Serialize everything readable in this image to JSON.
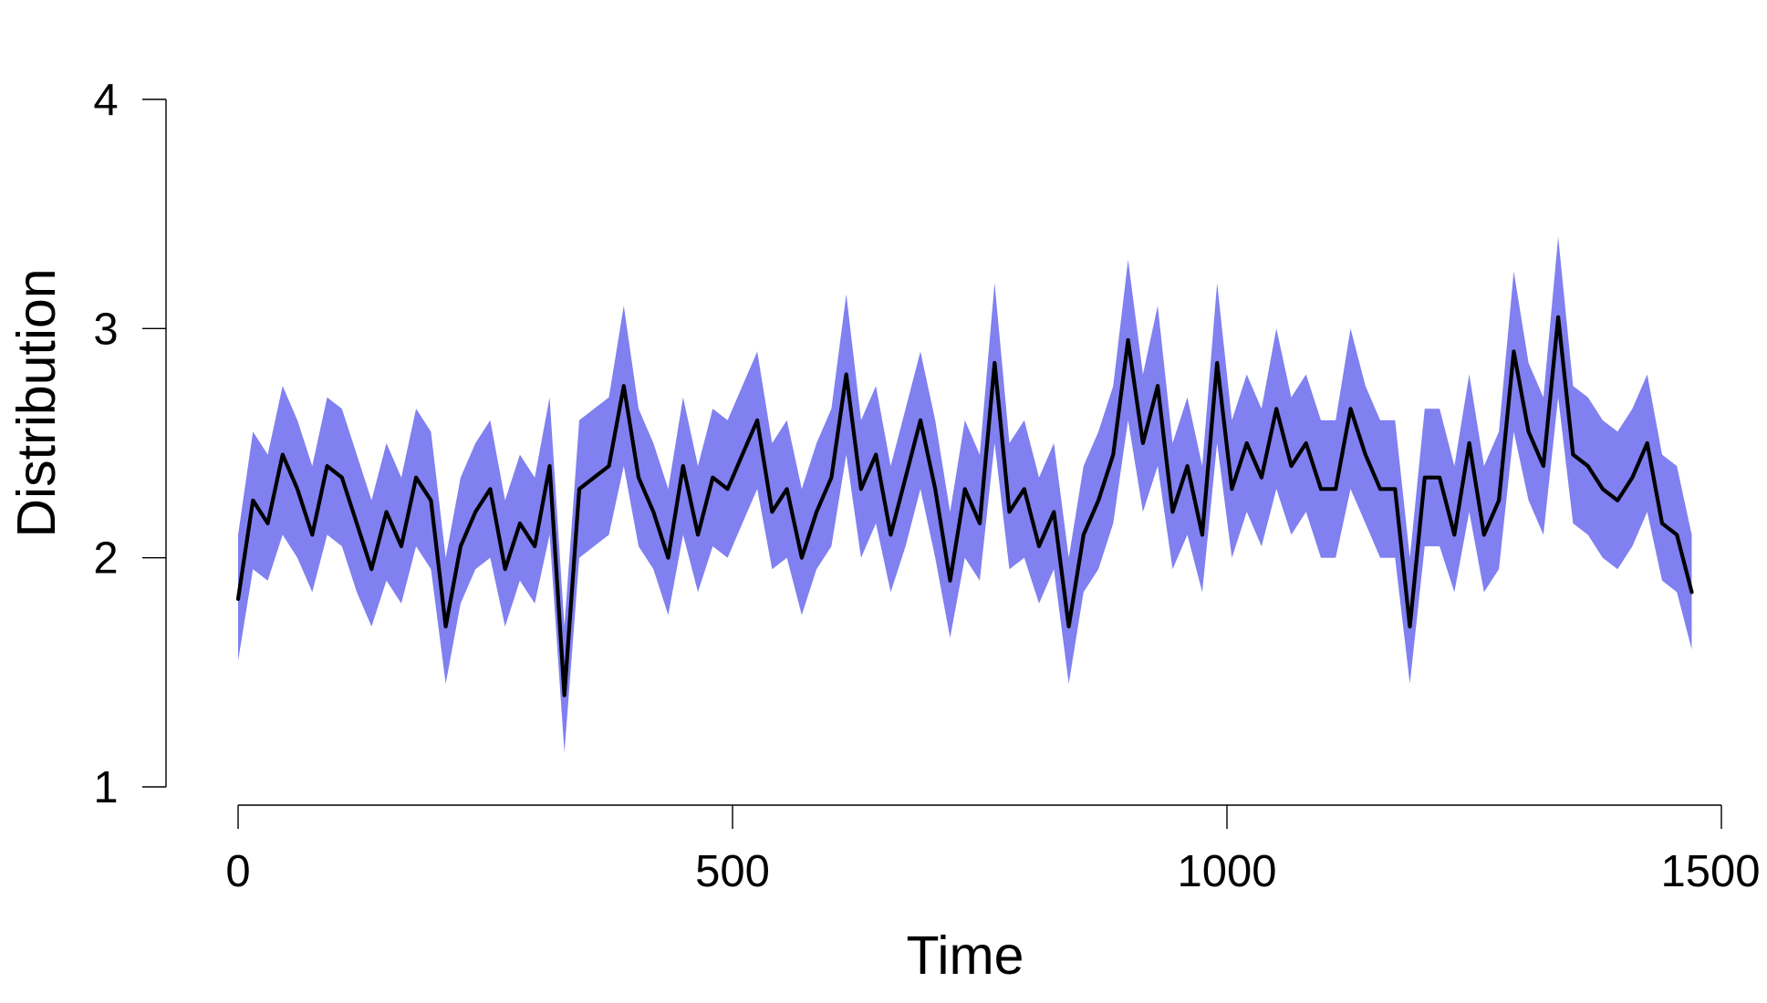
{
  "chart_data": {
    "type": "line",
    "xlabel": "Time",
    "ylabel": "Distribution",
    "xlim": [
      0,
      1500
    ],
    "ylim": [
      1,
      4
    ],
    "x_ticks": [
      "0",
      "500",
      "1000",
      "1500"
    ],
    "y_ticks": [
      "1",
      "2",
      "3",
      "4"
    ],
    "grid": false,
    "legend": "none",
    "colors": {
      "line": "#000000",
      "band": "#8080f0"
    },
    "series": [
      {
        "x": [
          0,
          15,
          30,
          45,
          60,
          75,
          90,
          105,
          120,
          135,
          150,
          165,
          180,
          195,
          210,
          225,
          240,
          255,
          270,
          285,
          300,
          315,
          330,
          345,
          360,
          375,
          390,
          405,
          420,
          435,
          450,
          465,
          480,
          495,
          510,
          525,
          540,
          555,
          570,
          585,
          600,
          615,
          630,
          645,
          660,
          675,
          690,
          705,
          720,
          735,
          750,
          765,
          780,
          795,
          810,
          825,
          840,
          855,
          870,
          885,
          900,
          915,
          930,
          945,
          960,
          975,
          990,
          1005,
          1020,
          1035,
          1050,
          1065,
          1080,
          1095,
          1110,
          1125,
          1140,
          1155,
          1170,
          1185,
          1200,
          1215,
          1230,
          1245,
          1260,
          1275,
          1290,
          1305,
          1320,
          1335,
          1350,
          1365,
          1380,
          1395,
          1410,
          1425,
          1440,
          1455,
          1470
        ],
        "values": [
          1.82,
          2.25,
          2.15,
          2.45,
          2.3,
          2.1,
          2.4,
          2.35,
          2.15,
          1.95,
          2.2,
          2.05,
          2.35,
          2.25,
          1.7,
          2.05,
          2.2,
          2.3,
          1.95,
          2.15,
          2.05,
          2.4,
          1.4,
          2.3,
          2.35,
          2.4,
          2.75,
          2.35,
          2.2,
          2.0,
          2.4,
          2.1,
          2.35,
          2.3,
          2.45,
          2.6,
          2.2,
          2.3,
          2.0,
          2.2,
          2.35,
          2.8,
          2.3,
          2.45,
          2.1,
          2.35,
          2.6,
          2.3,
          1.9,
          2.3,
          2.15,
          2.85,
          2.2,
          2.3,
          2.05,
          2.2,
          1.7,
          2.1,
          2.25,
          2.45,
          2.95,
          2.5,
          2.75,
          2.2,
          2.4,
          2.1,
          2.85,
          2.3,
          2.5,
          2.35,
          2.65,
          2.4,
          2.5,
          2.3,
          2.3,
          2.65,
          2.45,
          2.3,
          2.3,
          1.7,
          2.35,
          2.35,
          2.1,
          2.5,
          2.1,
          2.25,
          2.9,
          2.55,
          2.4,
          3.05,
          2.45,
          2.4,
          2.3,
          2.25,
          2.35,
          2.5,
          2.15,
          2.1,
          1.85
        ],
        "lower": [
          1.55,
          1.95,
          1.9,
          2.1,
          2.0,
          1.85,
          2.1,
          2.05,
          1.85,
          1.7,
          1.9,
          1.8,
          2.05,
          1.95,
          1.45,
          1.8,
          1.95,
          2.0,
          1.7,
          1.9,
          1.8,
          2.1,
          1.15,
          2.0,
          2.05,
          2.1,
          2.4,
          2.05,
          1.95,
          1.75,
          2.1,
          1.85,
          2.05,
          2.0,
          2.15,
          2.3,
          1.95,
          2.0,
          1.75,
          1.95,
          2.05,
          2.45,
          2.0,
          2.15,
          1.85,
          2.05,
          2.3,
          2.0,
          1.65,
          2.0,
          1.9,
          2.5,
          1.95,
          2.0,
          1.8,
          1.95,
          1.45,
          1.85,
          1.95,
          2.15,
          2.6,
          2.2,
          2.4,
          1.95,
          2.1,
          1.85,
          2.5,
          2.0,
          2.2,
          2.05,
          2.3,
          2.1,
          2.2,
          2.0,
          2.0,
          2.3,
          2.15,
          2.0,
          2.0,
          1.45,
          2.05,
          2.05,
          1.85,
          2.2,
          1.85,
          1.95,
          2.55,
          2.25,
          2.1,
          2.7,
          2.15,
          2.1,
          2.0,
          1.95,
          2.05,
          2.2,
          1.9,
          1.85,
          1.6
        ],
        "upper": [
          2.1,
          2.55,
          2.45,
          2.75,
          2.6,
          2.4,
          2.7,
          2.65,
          2.45,
          2.25,
          2.5,
          2.35,
          2.65,
          2.55,
          2.0,
          2.35,
          2.5,
          2.6,
          2.25,
          2.45,
          2.35,
          2.7,
          1.7,
          2.6,
          2.65,
          2.7,
          3.1,
          2.65,
          2.5,
          2.3,
          2.7,
          2.4,
          2.65,
          2.6,
          2.75,
          2.9,
          2.5,
          2.6,
          2.3,
          2.5,
          2.65,
          3.15,
          2.6,
          2.75,
          2.4,
          2.65,
          2.9,
          2.6,
          2.2,
          2.6,
          2.45,
          3.2,
          2.5,
          2.6,
          2.35,
          2.5,
          2.0,
          2.4,
          2.55,
          2.75,
          3.3,
          2.8,
          3.1,
          2.5,
          2.7,
          2.4,
          3.2,
          2.6,
          2.8,
          2.65,
          3.0,
          2.7,
          2.8,
          2.6,
          2.6,
          3.0,
          2.75,
          2.6,
          2.6,
          2.0,
          2.65,
          2.65,
          2.4,
          2.8,
          2.4,
          2.55,
          3.25,
          2.85,
          2.7,
          3.4,
          2.75,
          2.7,
          2.6,
          2.55,
          2.65,
          2.8,
          2.45,
          2.4,
          2.1
        ]
      }
    ]
  }
}
